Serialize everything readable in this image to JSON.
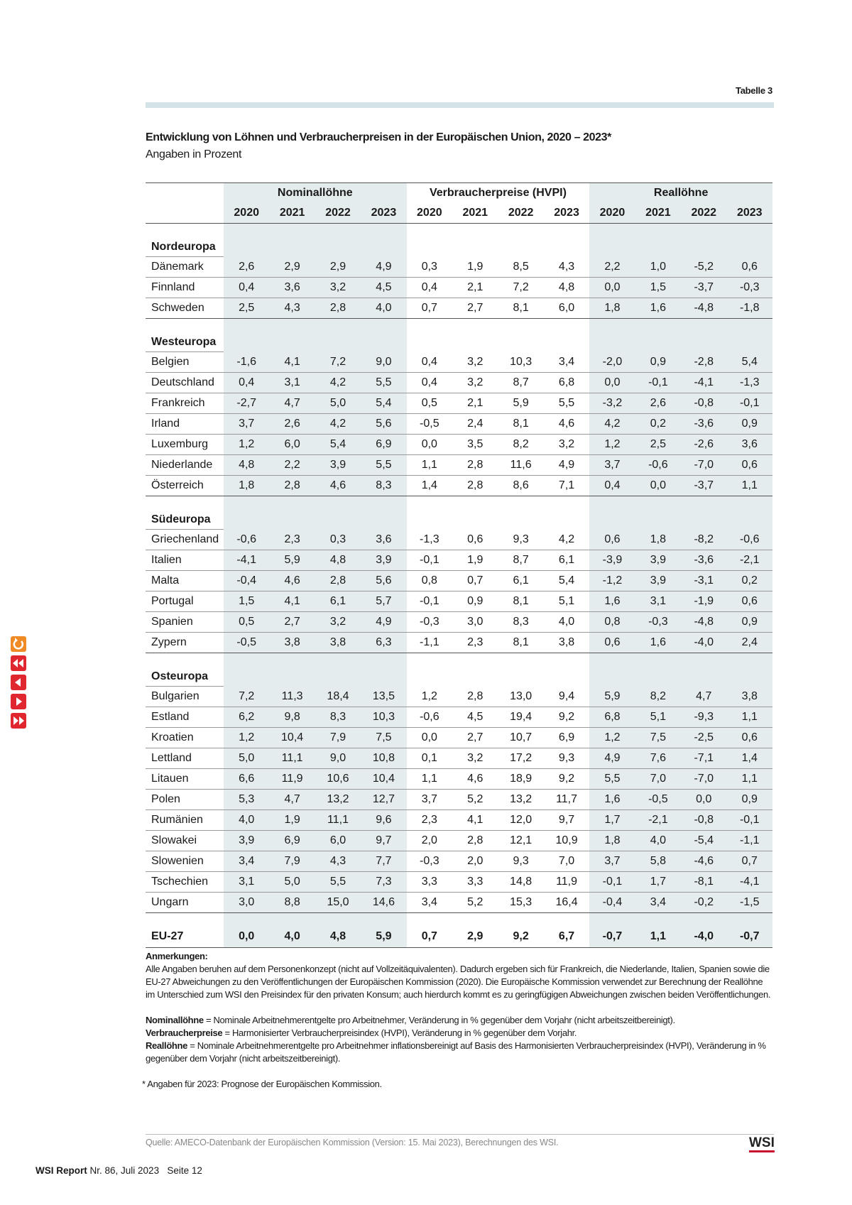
{
  "label": "Tabelle 3",
  "title": "Entwicklung von Löhnen und Verbraucherpreisen in der Europäischen Union, 2020 – 2023*",
  "subtitle": "Angaben in Prozent",
  "table": {
    "groups": [
      "Nominallöhne",
      "Verbraucherpreise (HVPI)",
      "Reallöhne"
    ],
    "years": [
      "2020",
      "2021",
      "2022",
      "2023"
    ],
    "sections": [
      {
        "name": "Nordeuropa",
        "rows": [
          {
            "country": "Dänemark",
            "values": [
              "2,6",
              "2,9",
              "2,9",
              "4,9",
              "0,3",
              "1,9",
              "8,5",
              "4,3",
              "2,2",
              "1,0",
              "-5,2",
              "0,6"
            ]
          },
          {
            "country": "Finnland",
            "values": [
              "0,4",
              "3,6",
              "3,2",
              "4,5",
              "0,4",
              "2,1",
              "7,2",
              "4,8",
              "0,0",
              "1,5",
              "-3,7",
              "-0,3"
            ]
          },
          {
            "country": "Schweden",
            "values": [
              "2,5",
              "4,3",
              "2,8",
              "4,0",
              "0,7",
              "2,7",
              "8,1",
              "6,0",
              "1,8",
              "1,6",
              "-4,8",
              "-1,8"
            ]
          }
        ]
      },
      {
        "name": "Westeuropa",
        "rows": [
          {
            "country": "Belgien",
            "values": [
              "-1,6",
              "4,1",
              "7,2",
              "9,0",
              "0,4",
              "3,2",
              "10,3",
              "3,4",
              "-2,0",
              "0,9",
              "-2,8",
              "5,4"
            ]
          },
          {
            "country": "Deutschland",
            "values": [
              "0,4",
              "3,1",
              "4,2",
              "5,5",
              "0,4",
              "3,2",
              "8,7",
              "6,8",
              "0,0",
              "-0,1",
              "-4,1",
              "-1,3"
            ]
          },
          {
            "country": "Frankreich",
            "values": [
              "-2,7",
              "4,7",
              "5,0",
              "5,4",
              "0,5",
              "2,1",
              "5,9",
              "5,5",
              "-3,2",
              "2,6",
              "-0,8",
              "-0,1"
            ]
          },
          {
            "country": "Irland",
            "values": [
              "3,7",
              "2,6",
              "4,2",
              "5,6",
              "-0,5",
              "2,4",
              "8,1",
              "4,6",
              "4,2",
              "0,2",
              "-3,6",
              "0,9"
            ]
          },
          {
            "country": "Luxemburg",
            "values": [
              "1,2",
              "6,0",
              "5,4",
              "6,9",
              "0,0",
              "3,5",
              "8,2",
              "3,2",
              "1,2",
              "2,5",
              "-2,6",
              "3,6"
            ]
          },
          {
            "country": "Niederlande",
            "values": [
              "4,8",
              "2,2",
              "3,9",
              "5,5",
              "1,1",
              "2,8",
              "11,6",
              "4,9",
              "3,7",
              "-0,6",
              "-7,0",
              "0,6"
            ]
          },
          {
            "country": "Österreich",
            "values": [
              "1,8",
              "2,8",
              "4,6",
              "8,3",
              "1,4",
              "2,8",
              "8,6",
              "7,1",
              "0,4",
              "0,0",
              "-3,7",
              "1,1"
            ]
          }
        ]
      },
      {
        "name": "Südeuropa",
        "rows": [
          {
            "country": "Griechenland",
            "values": [
              "-0,6",
              "2,3",
              "0,3",
              "3,6",
              "-1,3",
              "0,6",
              "9,3",
              "4,2",
              "0,6",
              "1,8",
              "-8,2",
              "-0,6"
            ]
          },
          {
            "country": "Italien",
            "values": [
              "-4,1",
              "5,9",
              "4,8",
              "3,9",
              "-0,1",
              "1,9",
              "8,7",
              "6,1",
              "-3,9",
              "3,9",
              "-3,6",
              "-2,1"
            ]
          },
          {
            "country": "Malta",
            "values": [
              "-0,4",
              "4,6",
              "2,8",
              "5,6",
              "0,8",
              "0,7",
              "6,1",
              "5,4",
              "-1,2",
              "3,9",
              "-3,1",
              "0,2"
            ]
          },
          {
            "country": "Portugal",
            "values": [
              "1,5",
              "4,1",
              "6,1",
              "5,7",
              "-0,1",
              "0,9",
              "8,1",
              "5,1",
              "1,6",
              "3,1",
              "-1,9",
              "0,6"
            ]
          },
          {
            "country": "Spanien",
            "values": [
              "0,5",
              "2,7",
              "3,2",
              "4,9",
              "-0,3",
              "3,0",
              "8,3",
              "4,0",
              "0,8",
              "-0,3",
              "-4,8",
              "0,9"
            ]
          },
          {
            "country": "Zypern",
            "values": [
              "-0,5",
              "3,8",
              "3,8",
              "6,3",
              "-1,1",
              "2,3",
              "8,1",
              "3,8",
              "0,6",
              "1,6",
              "-4,0",
              "2,4"
            ]
          }
        ]
      },
      {
        "name": "Osteuropa",
        "rows": [
          {
            "country": "Bulgarien",
            "values": [
              "7,2",
              "11,3",
              "18,4",
              "13,5",
              "1,2",
              "2,8",
              "13,0",
              "9,4",
              "5,9",
              "8,2",
              "4,7",
              "3,8"
            ]
          },
          {
            "country": "Estland",
            "values": [
              "6,2",
              "9,8",
              "8,3",
              "10,3",
              "-0,6",
              "4,5",
              "19,4",
              "9,2",
              "6,8",
              "5,1",
              "-9,3",
              "1,1"
            ]
          },
          {
            "country": "Kroatien",
            "values": [
              "1,2",
              "10,4",
              "7,9",
              "7,5",
              "0,0",
              "2,7",
              "10,7",
              "6,9",
              "1,2",
              "7,5",
              "-2,5",
              "0,6"
            ]
          },
          {
            "country": "Lettland",
            "values": [
              "5,0",
              "11,1",
              "9,0",
              "10,8",
              "0,1",
              "3,2",
              "17,2",
              "9,3",
              "4,9",
              "7,6",
              "-7,1",
              "1,4"
            ]
          },
          {
            "country": "Litauen",
            "values": [
              "6,6",
              "11,9",
              "10,6",
              "10,4",
              "1,1",
              "4,6",
              "18,9",
              "9,2",
              "5,5",
              "7,0",
              "-7,0",
              "1,1"
            ]
          },
          {
            "country": "Polen",
            "values": [
              "5,3",
              "4,7",
              "13,2",
              "12,7",
              "3,7",
              "5,2",
              "13,2",
              "11,7",
              "1,6",
              "-0,5",
              "0,0",
              "0,9"
            ]
          },
          {
            "country": "Rumänien",
            "values": [
              "4,0",
              "1,9",
              "11,1",
              "9,6",
              "2,3",
              "4,1",
              "12,0",
              "9,7",
              "1,7",
              "-2,1",
              "-0,8",
              "-0,1"
            ]
          },
          {
            "country": "Slowakei",
            "values": [
              "3,9",
              "6,9",
              "6,0",
              "9,7",
              "2,0",
              "2,8",
              "12,1",
              "10,9",
              "1,8",
              "4,0",
              "-5,4",
              "-1,1"
            ]
          },
          {
            "country": "Slowenien",
            "values": [
              "3,4",
              "7,9",
              "4,3",
              "7,7",
              "-0,3",
              "2,0",
              "9,3",
              "7,0",
              "3,7",
              "5,8",
              "-4,6",
              "0,7"
            ]
          },
          {
            "country": "Tschechien",
            "values": [
              "3,1",
              "5,0",
              "5,5",
              "7,3",
              "3,3",
              "3,3",
              "14,8",
              "11,9",
              "-0,1",
              "1,7",
              "-8,1",
              "-4,1"
            ]
          },
          {
            "country": "Ungarn",
            "values": [
              "3,0",
              "8,8",
              "15,0",
              "14,6",
              "3,4",
              "5,2",
              "15,3",
              "16,4",
              "-0,4",
              "3,4",
              "-0,2",
              "-1,5"
            ]
          }
        ]
      }
    ],
    "total": {
      "country": "EU-27",
      "values": [
        "0,0",
        "4,0",
        "4,8",
        "5,9",
        "0,7",
        "2,9",
        "9,2",
        "6,7",
        "-0,7",
        "1,1",
        "-4,0",
        "-0,7"
      ]
    }
  },
  "notes": {
    "heading": "Anmerkungen:",
    "text": "Alle Angaben beruhen auf dem Personenkonzept (nicht auf Vollzeitäquivalenten). Dadurch ergeben sich für Frankreich, die Niederlande, Italien, Spanien sowie die EU-27 Abweichungen zu den Veröffentlichungen der Europäischen Kommission (2020). Die Europäische Kommission verwendet zur Berechnung der Reallöhne im Unterschied zum WSI den Preisindex für den privaten Konsum; auch hierdurch kommt es zu geringfügigen Abweichungen zwischen beiden Veröffentlichungen.",
    "definitions": [
      {
        "term": "Nominallöhne",
        "text": " = Nominale Arbeitnehmerentgelte pro Arbeitnehmer, Veränderung in % gegenüber dem Vorjahr (nicht arbeitszeitbereinigt)."
      },
      {
        "term": "Verbraucherpreise",
        "text": " = Harmonisierter Verbraucherpreisindex (HVPI), Veränderung in % gegenüber dem Vorjahr."
      },
      {
        "term": "Reallöhne",
        "text": " = Nominale Arbeitnehmerentgelte pro Arbeitnehmer inflationsbereinigt auf Basis des Harmonisierten Verbraucherpreisindex (HVPI), Veränderung in % gegenüber dem Vorjahr (nicht arbeitszeitbereinigt)."
      }
    ],
    "footnote": "* Angaben für 2023: Prognose der Europäischen Kommission."
  },
  "source": "Quelle: AMECO-Datenbank der Europäischen Kommission (Version: 15. Mai 2023), Berechnungen des WSI.",
  "logo": "WSI",
  "footer": {
    "brand": "WSI Report",
    "issue": "Nr. 86, Juli 2023",
    "page": "Seite 12"
  }
}
